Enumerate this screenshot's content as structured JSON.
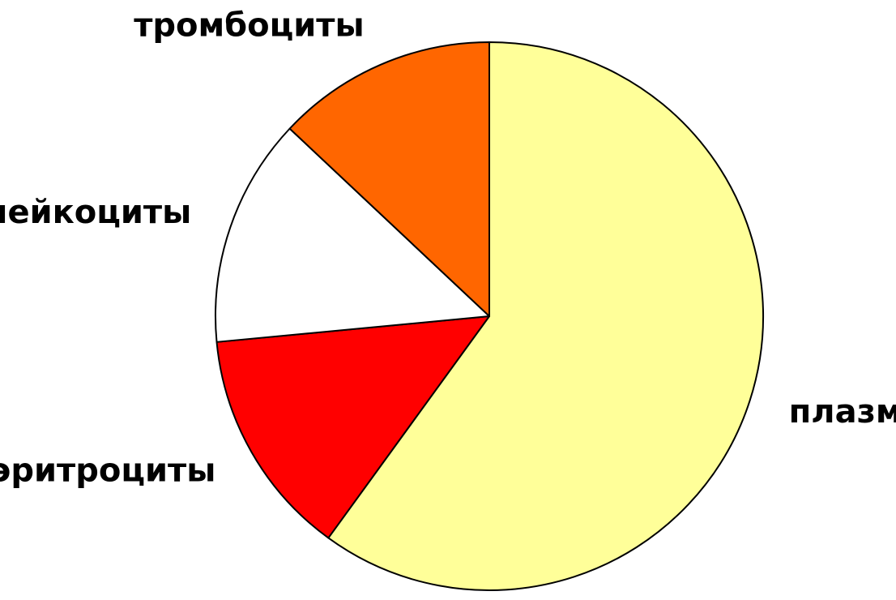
{
  "chart_data": {
    "type": "pie",
    "categories": [
      "плазма",
      "эритроциты",
      "лейкоциты",
      "тромбоциты"
    ],
    "values": [
      60,
      13.5,
      13.5,
      13
    ],
    "colors": [
      "#ffff99",
      "#ff0000",
      "#ffffff",
      "#ff6600"
    ]
  }
}
